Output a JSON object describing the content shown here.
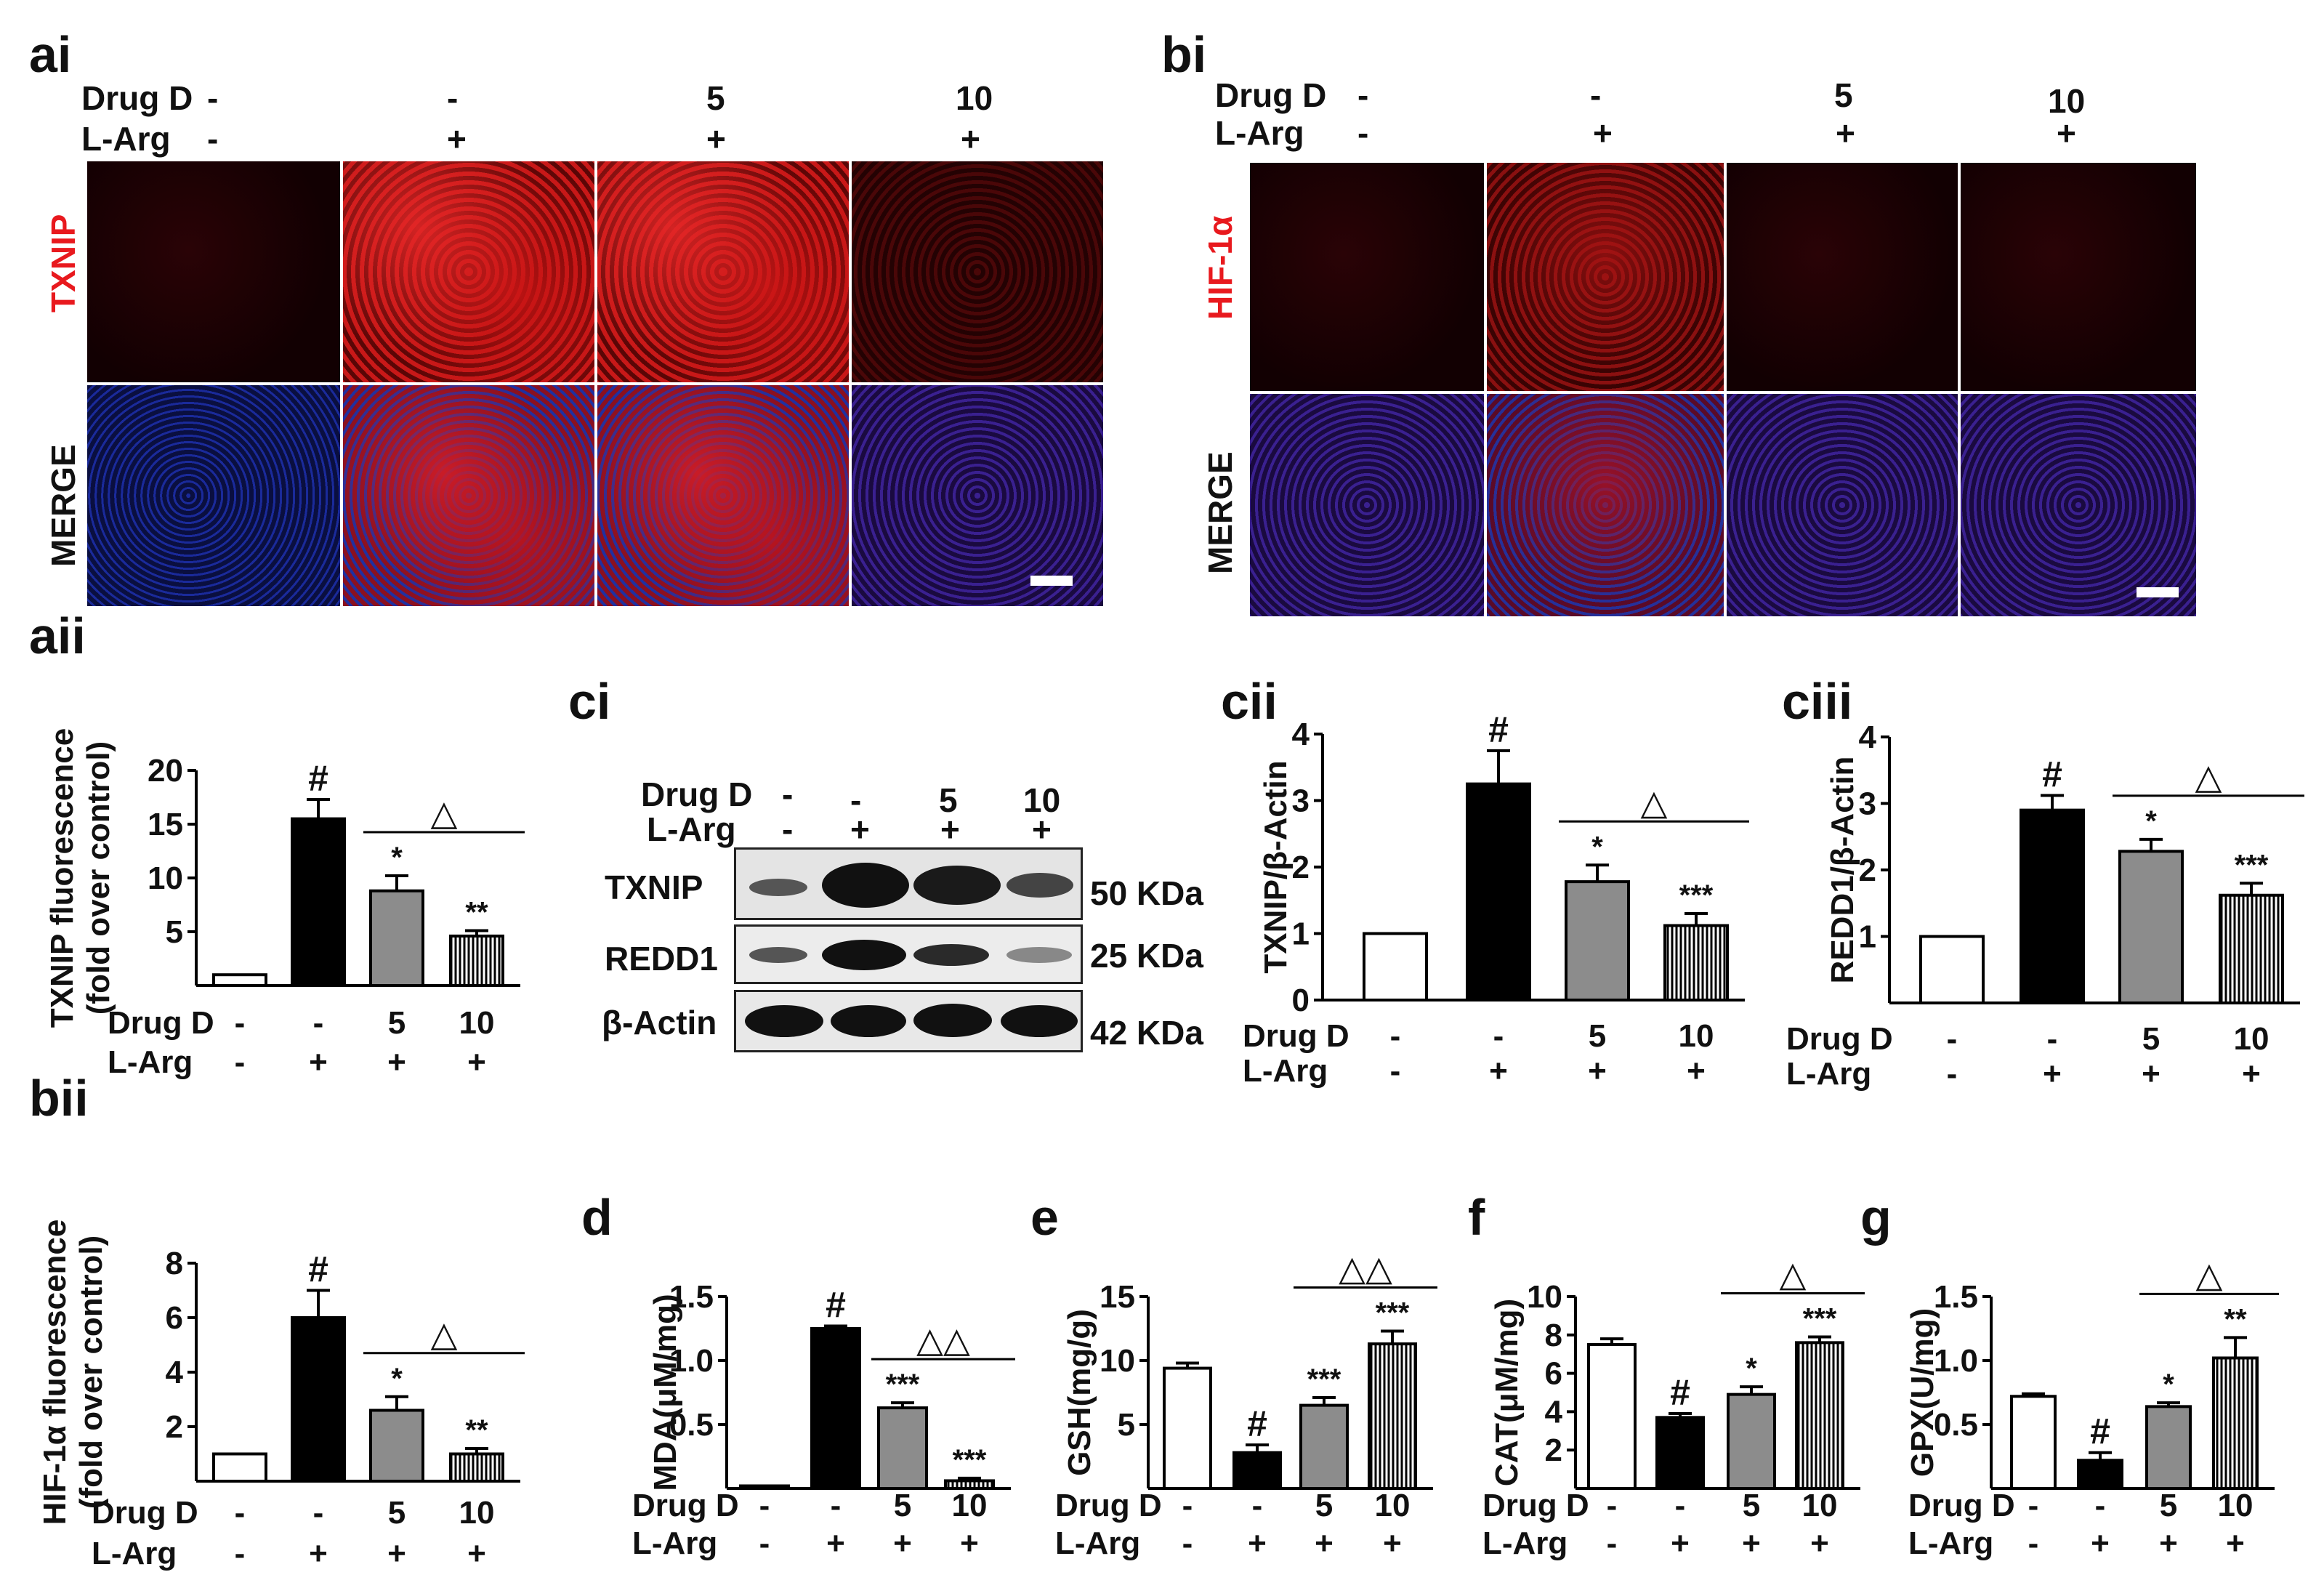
{
  "panel_labels": {
    "ai": "ai",
    "bi": "bi",
    "aii": "aii",
    "bii": "bii",
    "ci": "ci",
    "cii": "cii",
    "ciii": "ciii",
    "d": "d",
    "e": "e",
    "f": "f",
    "g": "g"
  },
  "rows": {
    "drug": "Drug D",
    "larg": "L-Arg"
  },
  "groups": {
    "drug": [
      "-",
      "-",
      "5",
      "10"
    ],
    "larg": [
      "-",
      "+",
      "+",
      "+"
    ]
  },
  "micro_a": {
    "stain_top": "TXNIP",
    "stain_bottom": "MERGE",
    "stain_color": "#e8191e"
  },
  "micro_b": {
    "stain_top": "HIF-1α",
    "stain_bottom": "MERGE",
    "stain_color": "#e8191e"
  },
  "blot": {
    "bands": [
      {
        "name": "TXNIP",
        "size": "50 KDa"
      },
      {
        "name": "REDD1",
        "size": "25 KDa"
      },
      {
        "name": "β-Actin",
        "size": "42 KDa"
      }
    ]
  },
  "colors": {
    "control": "#ffffff",
    "model": "#000000",
    "drug5": "#8c8c8c",
    "drug10": "hatched"
  },
  "chart_data": [
    {
      "id": "aii",
      "type": "bar",
      "ylabel": "TXNIP fluorescence\n(fold over control)",
      "ylim": [
        0,
        20
      ],
      "yticks": [
        "5",
        "10",
        "15",
        "20"
      ],
      "values": [
        1,
        15.5,
        8.8,
        4.6
      ],
      "errors": [
        0,
        1.8,
        1.4,
        0.5
      ],
      "markers": [
        "",
        "#",
        "*",
        "**"
      ],
      "bracket": "△"
    },
    {
      "id": "bii",
      "type": "bar",
      "ylabel": "HIF-1α fluorescence\n(fold over control)",
      "ylim": [
        0,
        8
      ],
      "yticks": [
        "2",
        "4",
        "6",
        "8"
      ],
      "values": [
        1,
        6.0,
        2.6,
        1.0
      ],
      "errors": [
        0,
        1.0,
        0.5,
        0.2
      ],
      "markers": [
        "",
        "#",
        "*",
        "**"
      ],
      "bracket": "△"
    },
    {
      "id": "cii",
      "type": "bar",
      "ylabel": "TXNIP/β-Actin",
      "ylim": [
        0,
        4
      ],
      "yticks": [
        "0",
        "1",
        "2",
        "3",
        "4"
      ],
      "values": [
        1,
        3.25,
        1.78,
        1.12
      ],
      "errors": [
        0,
        0.5,
        0.25,
        0.18
      ],
      "markers": [
        "",
        "#",
        "*",
        "***"
      ],
      "bracket": "△"
    },
    {
      "id": "ciii",
      "type": "bar",
      "ylabel": "REDD1/β-Actin",
      "ylim": [
        0,
        4
      ],
      "yticks": [
        "1",
        "2",
        "3",
        "4"
      ],
      "values": [
        1,
        2.9,
        2.28,
        1.62
      ],
      "errors": [
        0,
        0.22,
        0.18,
        0.18
      ],
      "markers": [
        "",
        "#",
        "*",
        "***"
      ],
      "bracket": "△"
    },
    {
      "id": "d",
      "type": "bar",
      "ylabel": "MDA(μM/mg)",
      "ylim": [
        0,
        1.5
      ],
      "yticks": [
        "0.5",
        "1.0",
        "1.5"
      ],
      "values": [
        0.02,
        1.25,
        0.63,
        0.06
      ],
      "errors": [
        0,
        0.02,
        0.04,
        0.02
      ],
      "markers": [
        "",
        "#",
        "***",
        "***"
      ],
      "bracket": "△△"
    },
    {
      "id": "e",
      "type": "bar",
      "ylabel": "GSH(mg/g)",
      "ylim": [
        0,
        15
      ],
      "yticks": [
        "5",
        "10",
        "15"
      ],
      "values": [
        9.4,
        2.8,
        6.5,
        11.3
      ],
      "errors": [
        0.4,
        0.6,
        0.6,
        1.0
      ],
      "markers": [
        "",
        "#",
        "***",
        "***"
      ],
      "bracket": "△△"
    },
    {
      "id": "f",
      "type": "bar",
      "ylabel": "CAT(μM/mg)",
      "ylim": [
        0,
        10
      ],
      "yticks": [
        "2",
        "4",
        "6",
        "8",
        "10"
      ],
      "values": [
        7.5,
        3.7,
        4.9,
        7.6
      ],
      "errors": [
        0.3,
        0.2,
        0.4,
        0.3
      ],
      "markers": [
        "",
        "#",
        "*",
        "***"
      ],
      "bracket": "△"
    },
    {
      "id": "g",
      "type": "bar",
      "ylabel": "GPX(U/mg)",
      "ylim": [
        0,
        1.5
      ],
      "yticks": [
        "0.5",
        "1.0",
        "1.5"
      ],
      "values": [
        0.72,
        0.22,
        0.64,
        1.02
      ],
      "errors": [
        0.02,
        0.06,
        0.03,
        0.16
      ],
      "markers": [
        "",
        "#",
        "*",
        "**"
      ],
      "bracket": "△"
    }
  ]
}
